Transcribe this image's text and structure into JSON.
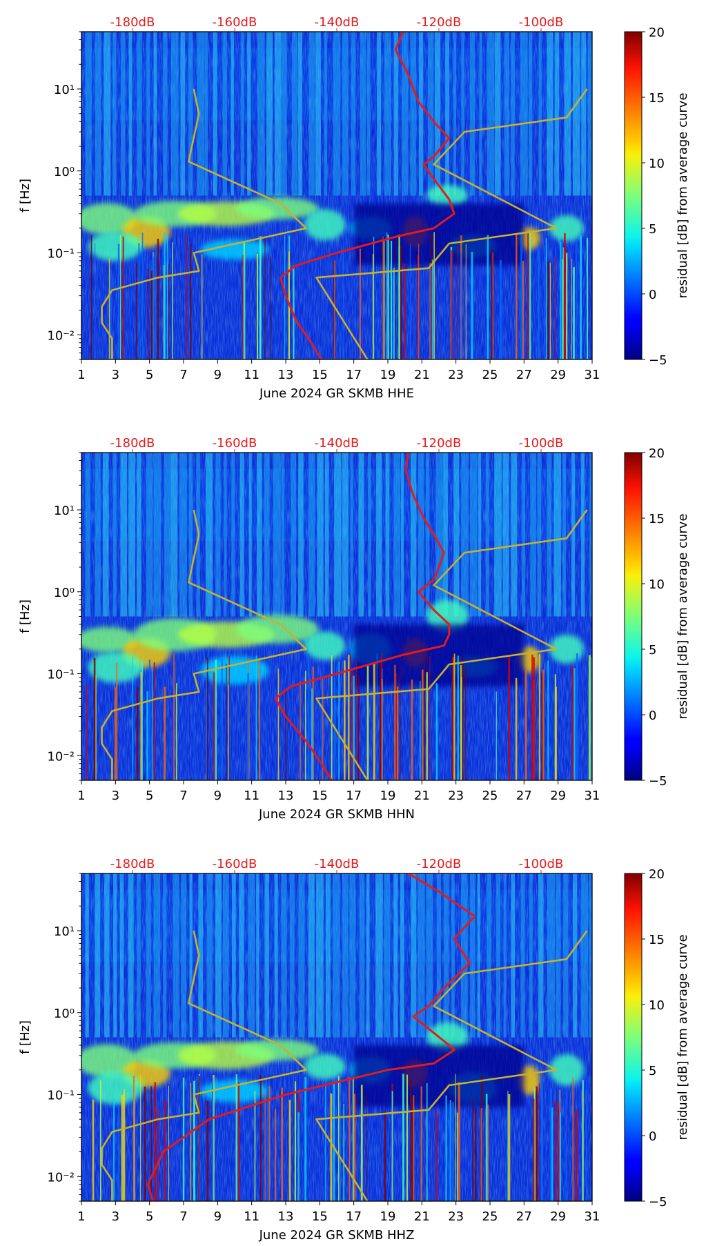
{
  "chart_data": [
    {
      "type": "heatmap",
      "xlabel": "June 2024 GR SKMB  HHE",
      "ylabel": "f [Hz]",
      "x_ticks": [
        "1",
        "3",
        "5",
        "7",
        "9",
        "11",
        "13",
        "15",
        "17",
        "19",
        "21",
        "23",
        "25",
        "27",
        "29",
        "31"
      ],
      "xlim": [
        1,
        31
      ],
      "y_ticks": [
        "10⁻²",
        "10⁻¹",
        "10⁰",
        "10¹"
      ],
      "ylim": [
        0.005,
        50
      ],
      "yscale": "log",
      "top_axis_labels": [
        "-180dB",
        "-160dB",
        "-140dB",
        "-120dB",
        "-100dB"
      ],
      "top_axis_values": [
        -180,
        -160,
        -140,
        -120,
        -100
      ],
      "top_axis_range": [
        -190,
        -90
      ],
      "colorbar": {
        "label": "residual [dB] from average curve",
        "range": [
          -5,
          20
        ],
        "ticks": [
          "20",
          "15",
          "10",
          "5",
          "0",
          "−5"
        ],
        "colormap": "jet"
      },
      "series": [
        {
          "color": "#e41a1c",
          "points": [
            [
              -127,
              50
            ],
            [
              -128.5,
              30
            ],
            [
              -127,
              20
            ],
            [
              -126,
              15
            ],
            [
              -125,
              10
            ],
            [
              -124,
              7
            ],
            [
              -121,
              4
            ],
            [
              -118,
              2.5
            ],
            [
              -121,
              1.5
            ],
            [
              -123,
              1.2
            ],
            [
              -121,
              0.8
            ],
            [
              -118,
              0.45
            ],
            [
              -117,
              0.3
            ],
            [
              -121,
              0.2
            ],
            [
              -128,
              0.16
            ],
            [
              -140,
              0.1
            ],
            [
              -148,
              0.07
            ],
            [
              -151,
              0.05
            ],
            [
              -150,
              0.03
            ],
            [
              -148,
              0.015
            ],
            [
              -145,
              0.008
            ],
            [
              -143,
              0.005
            ]
          ]
        },
        {
          "color": "#c8b12d",
          "points": [
            [
              -168,
              10
            ],
            [
              -167,
              5
            ],
            [
              -169,
              1.3
            ],
            [
              -151,
              0.4
            ],
            [
              -146,
              0.2
            ],
            [
              -168,
              0.1
            ],
            [
              -167,
              0.06
            ],
            [
              -175,
              0.05
            ],
            [
              -184,
              0.035
            ],
            [
              -186,
              0.022
            ],
            [
              -186,
              0.014
            ],
            [
              -184,
              0.009
            ],
            [
              -184,
              0.005
            ]
          ]
        },
        {
          "color": "#c8b12d",
          "points": [
            [
              -91,
              10
            ],
            [
              -95,
              4.5
            ],
            [
              -115,
              3
            ],
            [
              -121,
              1.2
            ],
            [
              -97,
              0.2
            ],
            [
              -118,
              0.13
            ],
            [
              -122,
              0.065
            ],
            [
              -144,
              0.05
            ],
            [
              -134,
              0.005
            ]
          ]
        }
      ]
    },
    {
      "type": "heatmap",
      "xlabel": "June 2024 GR SKMB  HHN",
      "ylabel": "f [Hz]",
      "x_ticks": [
        "1",
        "3",
        "5",
        "7",
        "9",
        "11",
        "13",
        "15",
        "17",
        "19",
        "21",
        "23",
        "25",
        "27",
        "29",
        "31"
      ],
      "xlim": [
        1,
        31
      ],
      "y_ticks": [
        "10⁻²",
        "10⁻¹",
        "10⁰",
        "10¹"
      ],
      "ylim": [
        0.005,
        50
      ],
      "yscale": "log",
      "top_axis_labels": [
        "-180dB",
        "-160dB",
        "-140dB",
        "-120dB",
        "-100dB"
      ],
      "top_axis_values": [
        -180,
        -160,
        -140,
        -120,
        -100
      ],
      "top_axis_range": [
        -190,
        -90
      ],
      "colorbar": {
        "label": "residual [dB] from average curve",
        "range": [
          -5,
          20
        ],
        "ticks": [
          "20",
          "15",
          "10",
          "5",
          "0",
          "−5"
        ],
        "colormap": "jet"
      },
      "series": [
        {
          "color": "#e41a1c",
          "points": [
            [
              -126,
              50
            ],
            [
              -126.5,
              30
            ],
            [
              -125,
              15
            ],
            [
              -123,
              8
            ],
            [
              -121,
              5
            ],
            [
              -119,
              3
            ],
            [
              -120,
              2
            ],
            [
              -121,
              1.4
            ],
            [
              -124,
              1.0
            ],
            [
              -121,
              0.6
            ],
            [
              -118,
              0.4
            ],
            [
              -118,
              0.3
            ],
            [
              -119,
              0.22
            ],
            [
              -127,
              0.17
            ],
            [
              -140,
              0.1
            ],
            [
              -149,
              0.07
            ],
            [
              -152,
              0.05
            ],
            [
              -150,
              0.03
            ],
            [
              -146,
              0.015
            ],
            [
              -143,
              0.008
            ],
            [
              -141,
              0.005
            ]
          ]
        },
        {
          "color": "#c8b12d",
          "points": [
            [
              -168,
              10
            ],
            [
              -167,
              5
            ],
            [
              -169,
              1.3
            ],
            [
              -151,
              0.4
            ],
            [
              -146,
              0.2
            ],
            [
              -168,
              0.1
            ],
            [
              -167,
              0.06
            ],
            [
              -175,
              0.05
            ],
            [
              -184,
              0.035
            ],
            [
              -186,
              0.022
            ],
            [
              -186,
              0.014
            ],
            [
              -184,
              0.009
            ],
            [
              -184,
              0.005
            ]
          ]
        },
        {
          "color": "#c8b12d",
          "points": [
            [
              -91,
              10
            ],
            [
              -95,
              4.5
            ],
            [
              -115,
              3
            ],
            [
              -121,
              1.2
            ],
            [
              -97,
              0.2
            ],
            [
              -118,
              0.13
            ],
            [
              -122,
              0.065
            ],
            [
              -144,
              0.05
            ],
            [
              -134,
              0.005
            ]
          ]
        }
      ]
    },
    {
      "type": "heatmap",
      "xlabel": "June 2024 GR SKMB  HHZ",
      "ylabel": "f [Hz]",
      "x_ticks": [
        "1",
        "3",
        "5",
        "7",
        "9",
        "11",
        "13",
        "15",
        "17",
        "19",
        "21",
        "23",
        "25",
        "27",
        "29",
        "31"
      ],
      "xlim": [
        1,
        31
      ],
      "y_ticks": [
        "10⁻²",
        "10⁻¹",
        "10⁰",
        "10¹"
      ],
      "ylim": [
        0.005,
        50
      ],
      "yscale": "log",
      "top_axis_labels": [
        "-180dB",
        "-160dB",
        "-140dB",
        "-120dB",
        "-100dB"
      ],
      "top_axis_values": [
        -180,
        -160,
        -140,
        -120,
        -100
      ],
      "top_axis_range": [
        -190,
        -90
      ],
      "colorbar": {
        "label": "residual [dB] from average curve",
        "range": [
          -5,
          20
        ],
        "ticks": [
          "20",
          "15",
          "10",
          "5",
          "0",
          "−5"
        ],
        "colormap": "jet"
      },
      "series": [
        {
          "color": "#e41a1c",
          "points": [
            [
              -126,
              50
            ],
            [
              -120,
              30
            ],
            [
              -113,
              15
            ],
            [
              -117,
              8
            ],
            [
              -114,
              4
            ],
            [
              -119,
              2
            ],
            [
              -122,
              1.2
            ],
            [
              -125,
              0.9
            ],
            [
              -118,
              0.4
            ],
            [
              -117,
              0.35
            ],
            [
              -121,
              0.24
            ],
            [
              -130,
              0.2
            ],
            [
              -150,
              0.1
            ],
            [
              -165,
              0.05
            ],
            [
              -174,
              0.02
            ],
            [
              -177,
              0.008
            ],
            [
              -176,
              0.005
            ]
          ]
        },
        {
          "color": "#c8b12d",
          "points": [
            [
              -168,
              10
            ],
            [
              -167,
              5
            ],
            [
              -169,
              1.3
            ],
            [
              -151,
              0.4
            ],
            [
              -146,
              0.2
            ],
            [
              -168,
              0.1
            ],
            [
              -167,
              0.06
            ],
            [
              -175,
              0.05
            ],
            [
              -184,
              0.035
            ],
            [
              -186,
              0.022
            ],
            [
              -186,
              0.014
            ],
            [
              -184,
              0.009
            ],
            [
              -184,
              0.005
            ]
          ]
        },
        {
          "color": "#c8b12d",
          "points": [
            [
              -91,
              10
            ],
            [
              -95,
              4.5
            ],
            [
              -115,
              3
            ],
            [
              -121,
              1.2
            ],
            [
              -97,
              0.2
            ],
            [
              -118,
              0.13
            ],
            [
              -122,
              0.065
            ],
            [
              -144,
              0.05
            ],
            [
              -134,
              0.005
            ]
          ]
        }
      ]
    }
  ]
}
